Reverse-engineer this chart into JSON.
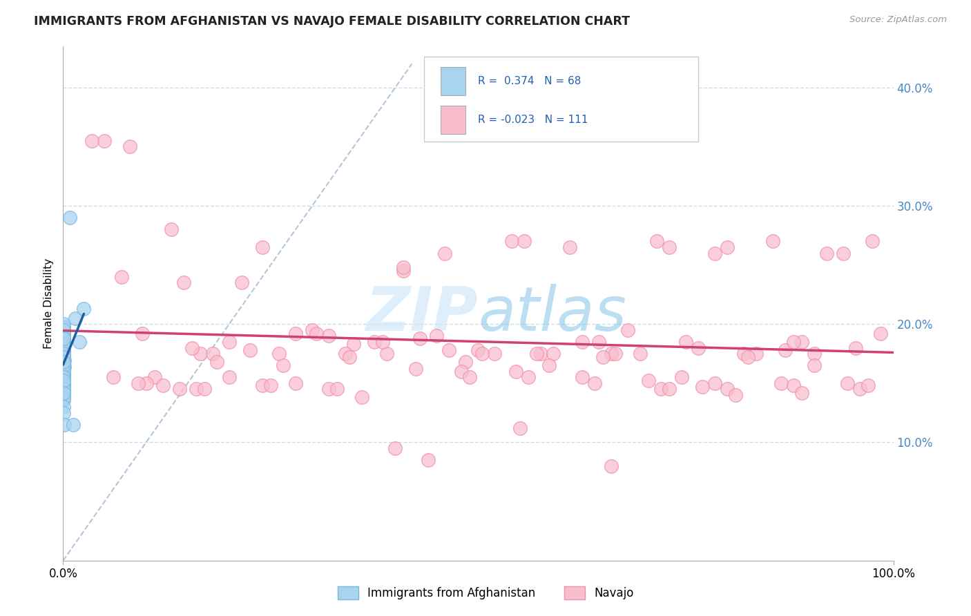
{
  "title": "IMMIGRANTS FROM AFGHANISTAN VS NAVAJO FEMALE DISABILITY CORRELATION CHART",
  "source": "Source: ZipAtlas.com",
  "ylabel": "Female Disability",
  "xlim": [
    0.0,
    1.0
  ],
  "ylim": [
    0.0,
    0.435
  ],
  "xtick_vals": [
    0.0,
    1.0
  ],
  "xtick_labels": [
    "0.0%",
    "100.0%"
  ],
  "ytick_vals_right": [
    0.1,
    0.2,
    0.3,
    0.4
  ],
  "ytick_labels_right": [
    "10.0%",
    "20.0%",
    "30.0%",
    "40.0%"
  ],
  "legend_r1": "R =  0.374",
  "legend_n1": "N = 68",
  "legend_r2": "R = -0.023",
  "legend_n2": "N = 111",
  "color_blue_fill": "#a8d4f0",
  "color_blue_edge": "#7ab8e0",
  "color_pink_fill": "#f9bece",
  "color_pink_edge": "#f090aa",
  "color_blue_line": "#2060a0",
  "color_pink_line": "#d04070",
  "color_diag": "#a0b8d0",
  "color_grid": "#c8d8e8",
  "watermark_color": "#d0e8f8",
  "background_color": "#ffffff",
  "blue_scatter_x": [
    0.0003,
    0.0005,
    0.0004,
    0.0006,
    0.0003,
    0.0007,
    0.0004,
    0.0002,
    0.0008,
    0.0005,
    0.0004,
    0.0006,
    0.0009,
    0.0007,
    0.0003,
    0.0005,
    0.0002,
    0.0008,
    0.001,
    0.0006,
    0.0003,
    0.0005,
    0.0004,
    0.0007,
    0.0002,
    0.0005,
    0.0007,
    0.0003,
    0.0009,
    0.0006,
    0.0002,
    0.0004,
    0.0005,
    0.0007,
    0.0003,
    0.001,
    0.0005,
    0.0002,
    0.0003,
    0.0008,
    0.0002,
    0.0003,
    0.0005,
    0.0009,
    0.0003,
    0.0002,
    0.0006,
    0.0003,
    0.0007,
    0.0002,
    0.0003,
    0.0002,
    0.0004,
    0.0003,
    0.0002,
    0.0008,
    0.0003,
    0.0005,
    0.0002,
    0.0003,
    0.0009,
    0.0005,
    0.0013,
    0.015,
    0.008,
    0.02,
    0.012,
    0.025
  ],
  "blue_scatter_y": [
    0.19,
    0.185,
    0.182,
    0.178,
    0.192,
    0.175,
    0.188,
    0.195,
    0.176,
    0.17,
    0.183,
    0.186,
    0.168,
    0.179,
    0.194,
    0.184,
    0.198,
    0.173,
    0.169,
    0.18,
    0.191,
    0.185,
    0.197,
    0.177,
    0.2,
    0.182,
    0.175,
    0.195,
    0.172,
    0.188,
    0.151,
    0.16,
    0.156,
    0.163,
    0.158,
    0.164,
    0.157,
    0.146,
    0.153,
    0.162,
    0.141,
    0.149,
    0.154,
    0.167,
    0.157,
    0.144,
    0.16,
    0.148,
    0.165,
    0.143,
    0.147,
    0.139,
    0.155,
    0.15,
    0.136,
    0.168,
    0.145,
    0.152,
    0.137,
    0.142,
    0.13,
    0.125,
    0.115,
    0.205,
    0.29,
    0.185,
    0.115,
    0.213
  ],
  "pink_scatter_x": [
    0.05,
    0.095,
    0.13,
    0.08,
    0.165,
    0.2,
    0.24,
    0.28,
    0.155,
    0.32,
    0.35,
    0.39,
    0.43,
    0.46,
    0.5,
    0.54,
    0.575,
    0.61,
    0.645,
    0.68,
    0.715,
    0.75,
    0.785,
    0.82,
    0.855,
    0.89,
    0.92,
    0.955,
    0.985,
    0.035,
    0.07,
    0.11,
    0.145,
    0.18,
    0.215,
    0.26,
    0.3,
    0.34,
    0.375,
    0.41,
    0.45,
    0.485,
    0.52,
    0.555,
    0.59,
    0.625,
    0.66,
    0.695,
    0.73,
    0.765,
    0.8,
    0.835,
    0.87,
    0.905,
    0.94,
    0.975,
    0.06,
    0.1,
    0.14,
    0.185,
    0.225,
    0.265,
    0.305,
    0.345,
    0.385,
    0.425,
    0.465,
    0.505,
    0.545,
    0.585,
    0.625,
    0.665,
    0.705,
    0.745,
    0.785,
    0.825,
    0.865,
    0.905,
    0.945,
    0.12,
    0.16,
    0.2,
    0.24,
    0.28,
    0.32,
    0.36,
    0.48,
    0.56,
    0.64,
    0.72,
    0.8,
    0.88,
    0.96,
    0.09,
    0.17,
    0.25,
    0.33,
    0.41,
    0.49,
    0.57,
    0.65,
    0.73,
    0.81,
    0.89,
    0.97,
    0.4,
    0.44,
    0.55,
    0.66,
    0.77,
    0.88
  ],
  "pink_scatter_y": [
    0.355,
    0.192,
    0.28,
    0.35,
    0.175,
    0.185,
    0.265,
    0.192,
    0.18,
    0.19,
    0.183,
    0.175,
    0.188,
    0.26,
    0.178,
    0.27,
    0.175,
    0.265,
    0.185,
    0.195,
    0.27,
    0.185,
    0.26,
    0.175,
    0.27,
    0.185,
    0.26,
    0.18,
    0.192,
    0.355,
    0.24,
    0.155,
    0.235,
    0.175,
    0.235,
    0.175,
    0.195,
    0.175,
    0.185,
    0.245,
    0.19,
    0.168,
    0.175,
    0.27,
    0.175,
    0.185,
    0.175,
    0.175,
    0.265,
    0.18,
    0.265,
    0.175,
    0.178,
    0.175,
    0.26,
    0.27,
    0.155,
    0.15,
    0.145,
    0.168,
    0.178,
    0.165,
    0.192,
    0.172,
    0.185,
    0.162,
    0.178,
    0.175,
    0.16,
    0.165,
    0.155,
    0.175,
    0.152,
    0.155,
    0.15,
    0.172,
    0.15,
    0.165,
    0.15,
    0.148,
    0.145,
    0.155,
    0.148,
    0.15,
    0.145,
    0.138,
    0.16,
    0.155,
    0.15,
    0.145,
    0.145,
    0.148,
    0.145,
    0.15,
    0.145,
    0.148,
    0.145,
    0.248,
    0.155,
    0.175,
    0.172,
    0.145,
    0.14,
    0.142,
    0.148,
    0.095,
    0.085,
    0.112,
    0.08,
    0.147,
    0.185
  ]
}
